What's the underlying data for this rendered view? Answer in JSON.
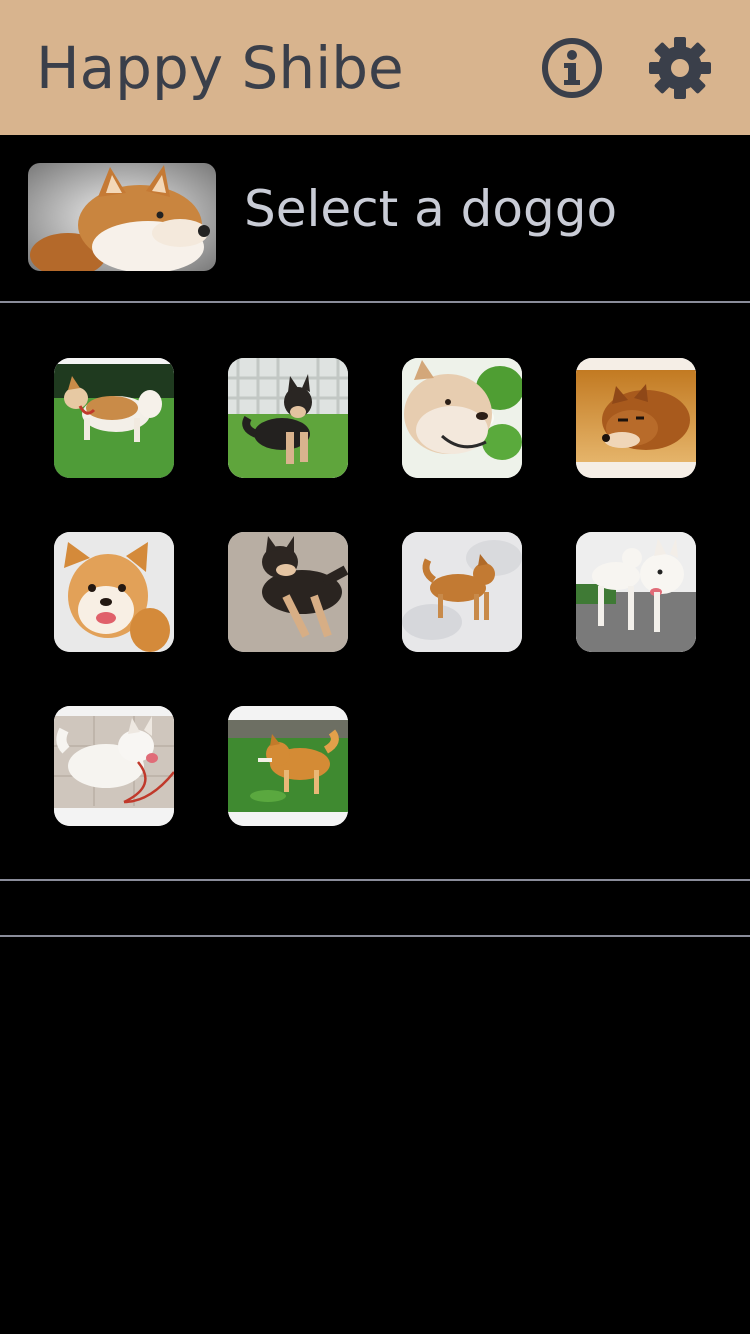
{
  "app": {
    "title": "Happy Shibe",
    "header_bg": "#d8b48e",
    "title_color": "#3a3f4a"
  },
  "header": {
    "icons": [
      "info-icon",
      "gear-icon"
    ]
  },
  "selected": {
    "label": "Select a doggo",
    "thumbnail": "shiba-portrait-image"
  },
  "gallery": {
    "items": [
      "shiba-on-grass-photo",
      "black-tan-shiba-on-lawn-photo",
      "shiba-face-leaves-photo",
      "red-shiba-lying-photo",
      "shiba-puppy-face-photo",
      "black-shiba-lying-photo",
      "shiba-in-snow-photo",
      "two-white-shibas-photo",
      "cream-shiba-leash-photo",
      "shiba-stick-grass-photo"
    ]
  }
}
